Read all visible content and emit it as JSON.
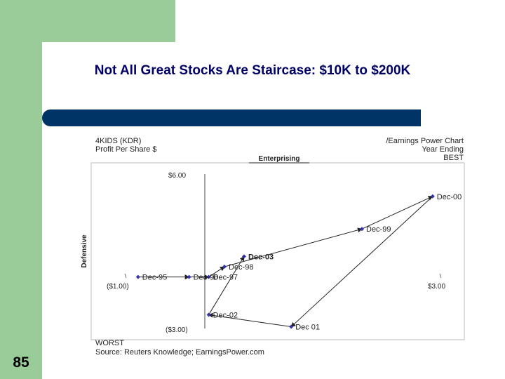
{
  "slide": {
    "title": "Not All Great Stocks Are Staircase: $10K to $200K",
    "page_number": "85"
  },
  "colors": {
    "accent_green": "#99cc99",
    "bar_navy": "#003366",
    "title_color": "#000066",
    "point_color": "#3333aa"
  },
  "chart_data": {
    "type": "scatter",
    "header_left": [
      "4KIDS (KDR)",
      "Profit Per Share $"
    ],
    "header_right": [
      "/Earnings Power Chart",
      "Year Ending",
      "BEST"
    ],
    "top_label": "Enterprising",
    "left_label": "Defensive",
    "bottom_label": "WORST",
    "source": "Source: Reuters Knowledge; EarningsPower.com",
    "tick_labels": {
      "y_top": "$6.00",
      "y_bottom": "($3.00)",
      "x_left": "($1.00)",
      "x_right": "$3.00"
    },
    "xlim": [
      -1.0,
      3.0
    ],
    "ylim": [
      -3.0,
      6.0
    ],
    "points": [
      {
        "label": "Dec-00",
        "x": 2.9,
        "y": 4.7
      },
      {
        "label": "Dec-99",
        "x": 2.0,
        "y": 2.8
      },
      {
        "label": "Dec-03",
        "x": 0.5,
        "y": 1.2
      },
      {
        "label": "Dec-98",
        "x": 0.25,
        "y": 0.6
      },
      {
        "label": "Dec-95",
        "x": -0.85,
        "y": 0.0
      },
      {
        "label": "Dec-96",
        "x": -0.2,
        "y": 0.0
      },
      {
        "label": "Dec-97",
        "x": 0.05,
        "y": 0.0
      },
      {
        "label": "Dec-02",
        "x": 0.05,
        "y": -2.2
      },
      {
        "label": "Dec 01",
        "x": 1.1,
        "y": -2.9
      }
    ],
    "path_order": [
      "Dec-95",
      "Dec-96",
      "Dec-97",
      "Dec-98",
      "Dec-99",
      "Dec-00",
      "Dec 01",
      "Dec-02",
      "Dec-03"
    ]
  }
}
